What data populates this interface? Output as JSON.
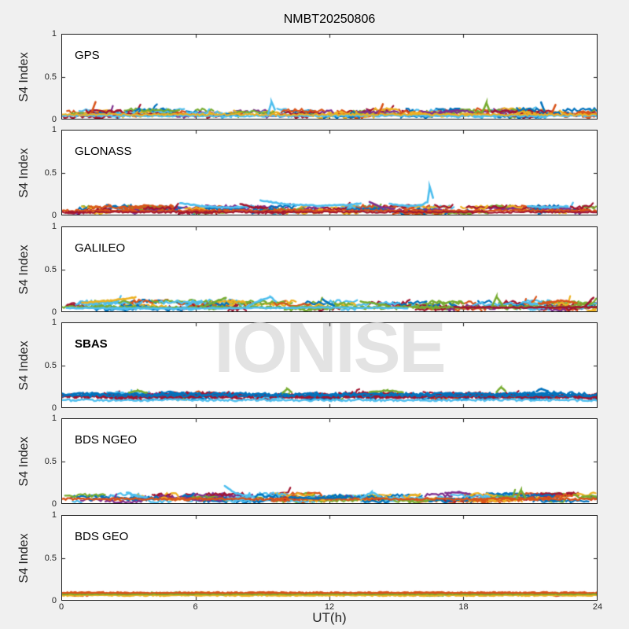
{
  "title": "NMBT20250806",
  "watermark": "IONISE",
  "colors": {
    "background": "#F0F0F0",
    "panel_bg": "#FFFFFF",
    "axis": "#1a1a1a",
    "tick_label": "#262626",
    "watermark": "#E3E3E3",
    "palette": {
      "blue": "#0072BD",
      "orange": "#D95319",
      "yellow": "#EDB120",
      "purple": "#7E2F8E",
      "green": "#77AC30",
      "lightblue": "#4DBEEE",
      "darkred": "#A2142F"
    }
  },
  "chart_data": {
    "type": "scatter",
    "title": "NMBT20250806",
    "xlabel": "UT(h)",
    "ylabel": "S4 Index",
    "xlim": [
      0,
      24
    ],
    "ylim": [
      0,
      1
    ],
    "xticks": [
      0,
      6,
      12,
      18,
      24
    ],
    "yticks": [
      0,
      0.5,
      1
    ],
    "grid": false,
    "legend": "none",
    "description": "S4 amplitude scintillation index vs universal time for six GNSS constellations; many per-satellite traces in MATLAB default colors forming a quiet band near S4 0-0.15.",
    "panels": [
      {
        "label": "GPS",
        "bold": false,
        "band": {
          "min": 0.02,
          "max": 0.11,
          "noise": 0.02
        },
        "n_tracks": 170,
        "spike_prob": 0.1,
        "color_weights": {
          "blue": 1,
          "orange": 1.4,
          "yellow": 1.3,
          "purple": 0.7,
          "green": 0.7,
          "lightblue": 1.3,
          "darkred": 1.1
        },
        "long_lines": [
          {
            "color": "lightblue",
            "y": 0.035,
            "noise": 0.01,
            "width": 2.4
          },
          {
            "color": "yellow",
            "y": 0.05,
            "noise": 0.012,
            "width": 2.0
          }
        ],
        "arcs": [
          {
            "color": "orange",
            "pts": [
              [
                1.35,
                0.09
              ],
              [
                1.5,
                0.2
              ]
            ]
          },
          {
            "color": "lightblue",
            "pts": [
              [
                9.25,
                0.06
              ],
              [
                9.4,
                0.2
              ],
              [
                9.55,
                0.11
              ]
            ]
          },
          {
            "color": "orange",
            "pts": [
              [
                14.2,
                0.06
              ],
              [
                14.4,
                0.17
              ]
            ]
          },
          {
            "color": "green",
            "pts": [
              [
                18.85,
                0.07
              ],
              [
                19.05,
                0.19
              ],
              [
                19.2,
                0.09
              ]
            ]
          },
          {
            "color": "blue",
            "pts": [
              [
                21.5,
                0.2
              ],
              [
                21.65,
                0.09
              ]
            ]
          },
          {
            "color": "orange",
            "pts": [
              [
                22.0,
                0.08
              ],
              [
                22.15,
                0.16
              ]
            ]
          }
        ]
      },
      {
        "label": "GLONASS",
        "bold": false,
        "band": {
          "min": 0.02,
          "max": 0.1,
          "noise": 0.02
        },
        "n_tracks": 150,
        "spike_prob": 0.08,
        "color_weights": {
          "blue": 1,
          "orange": 1.5,
          "yellow": 1.1,
          "purple": 0.9,
          "green": 0.6,
          "lightblue": 0.9,
          "darkred": 1.3
        },
        "long_lines": [
          {
            "color": "orange",
            "y": 0.045,
            "noise": 0.012,
            "width": 2.4
          },
          {
            "color": "darkred",
            "y": 0.03,
            "noise": 0.01,
            "width": 2.0
          }
        ],
        "arcs": [
          {
            "color": "lightblue",
            "pts": [
              [
                5.3,
                0.14
              ],
              [
                6.3,
                0.1
              ],
              [
                7.4,
                0.085
              ],
              [
                8.6,
                0.1
              ]
            ]
          },
          {
            "color": "lightblue",
            "pts": [
              [
                8.9,
                0.17
              ],
              [
                10.0,
                0.125
              ],
              [
                11.5,
                0.105
              ],
              [
                12.8,
                0.115
              ],
              [
                13.4,
                0.135
              ]
            ]
          },
          {
            "color": "lightblue",
            "pts": [
              [
                14.7,
                0.13
              ],
              [
                15.5,
                0.1
              ],
              [
                16.1,
                0.11
              ],
              [
                16.4,
                0.15
              ],
              [
                16.5,
                0.33
              ],
              [
                16.65,
                0.2
              ]
            ]
          },
          {
            "color": "purple",
            "pts": [
              [
                13.8,
                0.15
              ],
              [
                14.3,
                0.09
              ],
              [
                14.9,
                0.07
              ]
            ]
          },
          {
            "color": "lightblue",
            "pts": [
              [
                20.9,
                0.1
              ],
              [
                21.9,
                0.085
              ],
              [
                22.7,
                0.1
              ]
            ]
          },
          {
            "color": "darkred",
            "pts": [
              [
                8.0,
                0.13
              ],
              [
                8.5,
                0.09
              ],
              [
                9.2,
                0.08
              ]
            ]
          }
        ]
      },
      {
        "label": "GALILEO",
        "bold": false,
        "band": {
          "min": 0.02,
          "max": 0.12,
          "noise": 0.022
        },
        "n_tracks": 150,
        "spike_prob": 0.08,
        "color_weights": {
          "blue": 0.9,
          "orange": 1.2,
          "yellow": 1.0,
          "purple": 0.5,
          "green": 1.6,
          "lightblue": 1.5,
          "darkred": 1.0
        },
        "long_lines": [
          {
            "color": "green",
            "y": 0.05,
            "noise": 0.015,
            "width": 2.2
          }
        ],
        "arcs": [
          {
            "color": "yellow",
            "pts": [
              [
                0.9,
                0.1
              ],
              [
                2.2,
                0.13
              ],
              [
                3.3,
                0.165
              ]
            ]
          },
          {
            "color": "lightblue",
            "pts": [
              [
                0.2,
                0.04
              ],
              [
                4.0,
                0.035
              ],
              [
                8.0,
                0.04
              ],
              [
                12.0,
                0.045
              ],
              [
                15.5,
                0.04
              ]
            ]
          },
          {
            "color": "green",
            "pts": [
              [
                6.3,
                0.05
              ],
              [
                7.1,
                0.14
              ],
              [
                7.35,
                0.16
              ]
            ]
          },
          {
            "color": "lightblue",
            "pts": [
              [
                8.3,
                0.06
              ],
              [
                8.9,
                0.13
              ],
              [
                9.35,
                0.17
              ],
              [
                9.6,
                0.12
              ]
            ]
          },
          {
            "color": "blue",
            "pts": [
              [
                11.7,
                0.14
              ],
              [
                12.2,
                0.07
              ]
            ]
          },
          {
            "color": "green",
            "pts": [
              [
                13.4,
                0.12
              ],
              [
                14.6,
                0.07
              ]
            ]
          },
          {
            "color": "darkred",
            "pts": [
              [
                17.6,
                0.05
              ],
              [
                21.0,
                0.045
              ],
              [
                24.0,
                0.05
              ]
            ]
          },
          {
            "color": "green",
            "pts": [
              [
                19.3,
                0.06
              ],
              [
                19.5,
                0.17
              ],
              [
                19.75,
                0.08
              ]
            ]
          },
          {
            "color": "orange",
            "pts": [
              [
                21.4,
                0.09
              ],
              [
                22.4,
                0.13
              ],
              [
                23.1,
                0.1
              ]
            ]
          },
          {
            "color": "darkred",
            "pts": [
              [
                23.5,
                0.07
              ],
              [
                23.85,
                0.16
              ]
            ]
          }
        ]
      },
      {
        "label": "SBAS",
        "bold": true,
        "band": {
          "min": 0.1,
          "max": 0.17,
          "noise": 0.02
        },
        "n_tracks": 110,
        "spike_prob": 0.05,
        "color_weights": {
          "darkred": 4,
          "blue": 2.5,
          "lightblue": 1.2,
          "green": 0.8,
          "yellow": 0.3,
          "orange": 0.3,
          "purple": 0.2
        },
        "long_lines": [
          {
            "color": "darkred",
            "y": 0.135,
            "noise": 0.02,
            "width": 2.6
          },
          {
            "color": "darkred",
            "y": 0.125,
            "noise": 0.018,
            "width": 2.4
          },
          {
            "color": "blue",
            "y": 0.155,
            "noise": 0.018,
            "width": 2.4
          },
          {
            "color": "blue",
            "y": 0.14,
            "noise": 0.015,
            "width": 2.2
          },
          {
            "color": "lightblue",
            "y": 0.085,
            "noise": 0.012,
            "width": 2.4
          }
        ],
        "arcs": [
          {
            "color": "green",
            "pts": [
              [
                3.0,
                0.17
              ],
              [
                3.4,
                0.2
              ],
              [
                3.8,
                0.17
              ]
            ]
          },
          {
            "color": "green",
            "pts": [
              [
                9.9,
                0.17
              ],
              [
                10.1,
                0.22
              ],
              [
                10.3,
                0.18
              ]
            ]
          },
          {
            "color": "green",
            "pts": [
              [
                13.8,
                0.18
              ],
              [
                14.6,
                0.2
              ],
              [
                15.3,
                0.18
              ]
            ]
          },
          {
            "color": "green",
            "pts": [
              [
                19.5,
                0.18
              ],
              [
                19.7,
                0.24
              ],
              [
                19.9,
                0.19
              ]
            ]
          },
          {
            "color": "blue",
            "pts": [
              [
                21.3,
                0.19
              ],
              [
                21.5,
                0.22
              ],
              [
                21.8,
                0.19
              ]
            ]
          }
        ]
      },
      {
        "label": "BDS NGEO",
        "bold": false,
        "band": {
          "min": 0.02,
          "max": 0.11,
          "noise": 0.02
        },
        "n_tracks": 160,
        "spike_prob": 0.08,
        "color_weights": {
          "blue": 1.3,
          "orange": 1.5,
          "yellow": 1.1,
          "purple": 0.8,
          "green": 1.0,
          "lightblue": 1.0,
          "darkred": 1.0
        },
        "long_lines": [
          {
            "color": "orange",
            "y": 0.05,
            "noise": 0.012,
            "width": 2.4
          }
        ],
        "arcs": [
          {
            "color": "lightblue",
            "pts": [
              [
                2.9,
                0.13
              ],
              [
                3.3,
                0.09
              ],
              [
                3.8,
                0.07
              ]
            ]
          },
          {
            "color": "lightblue",
            "pts": [
              [
                7.3,
                0.2
              ],
              [
                7.8,
                0.12
              ],
              [
                8.6,
                0.07
              ]
            ]
          },
          {
            "color": "lightblue",
            "pts": [
              [
                13.4,
                0.06
              ],
              [
                13.9,
                0.13
              ],
              [
                14.3,
                0.08
              ]
            ]
          },
          {
            "color": "blue",
            "pts": [
              [
                10.2,
                0.07
              ],
              [
                11.5,
                0.06
              ],
              [
                12.8,
                0.07
              ]
            ]
          },
          {
            "color": "green",
            "pts": [
              [
                20.4,
                0.06
              ],
              [
                20.6,
                0.15
              ],
              [
                20.8,
                0.07
              ]
            ]
          },
          {
            "color": "purple",
            "pts": [
              [
                17.2,
                0.12
              ],
              [
                17.8,
                0.13
              ],
              [
                18.3,
                0.11
              ]
            ]
          }
        ]
      },
      {
        "label": "BDS GEO",
        "bold": false,
        "band": {
          "min": 0.05,
          "max": 0.09,
          "noise": 0.008
        },
        "n_tracks": 40,
        "spike_prob": 0,
        "color_weights": {
          "orange": 4,
          "yellow": 2,
          "darkred": 0.5,
          "green": 0.4,
          "blue": 0.3,
          "lightblue": 0.2,
          "purple": 0.1
        },
        "long_lines": [
          {
            "color": "orange",
            "y": 0.078,
            "noise": 0.01,
            "width": 2.8
          },
          {
            "color": "orange",
            "y": 0.07,
            "noise": 0.008,
            "width": 2.6
          },
          {
            "color": "yellow",
            "y": 0.055,
            "noise": 0.008,
            "width": 2.6
          },
          {
            "color": "orange",
            "y": 0.085,
            "noise": 0.01,
            "width": 2.2
          },
          {
            "color": "green",
            "y": 0.065,
            "noise": 0.005,
            "width": 1.6
          }
        ],
        "arcs": []
      }
    ]
  }
}
